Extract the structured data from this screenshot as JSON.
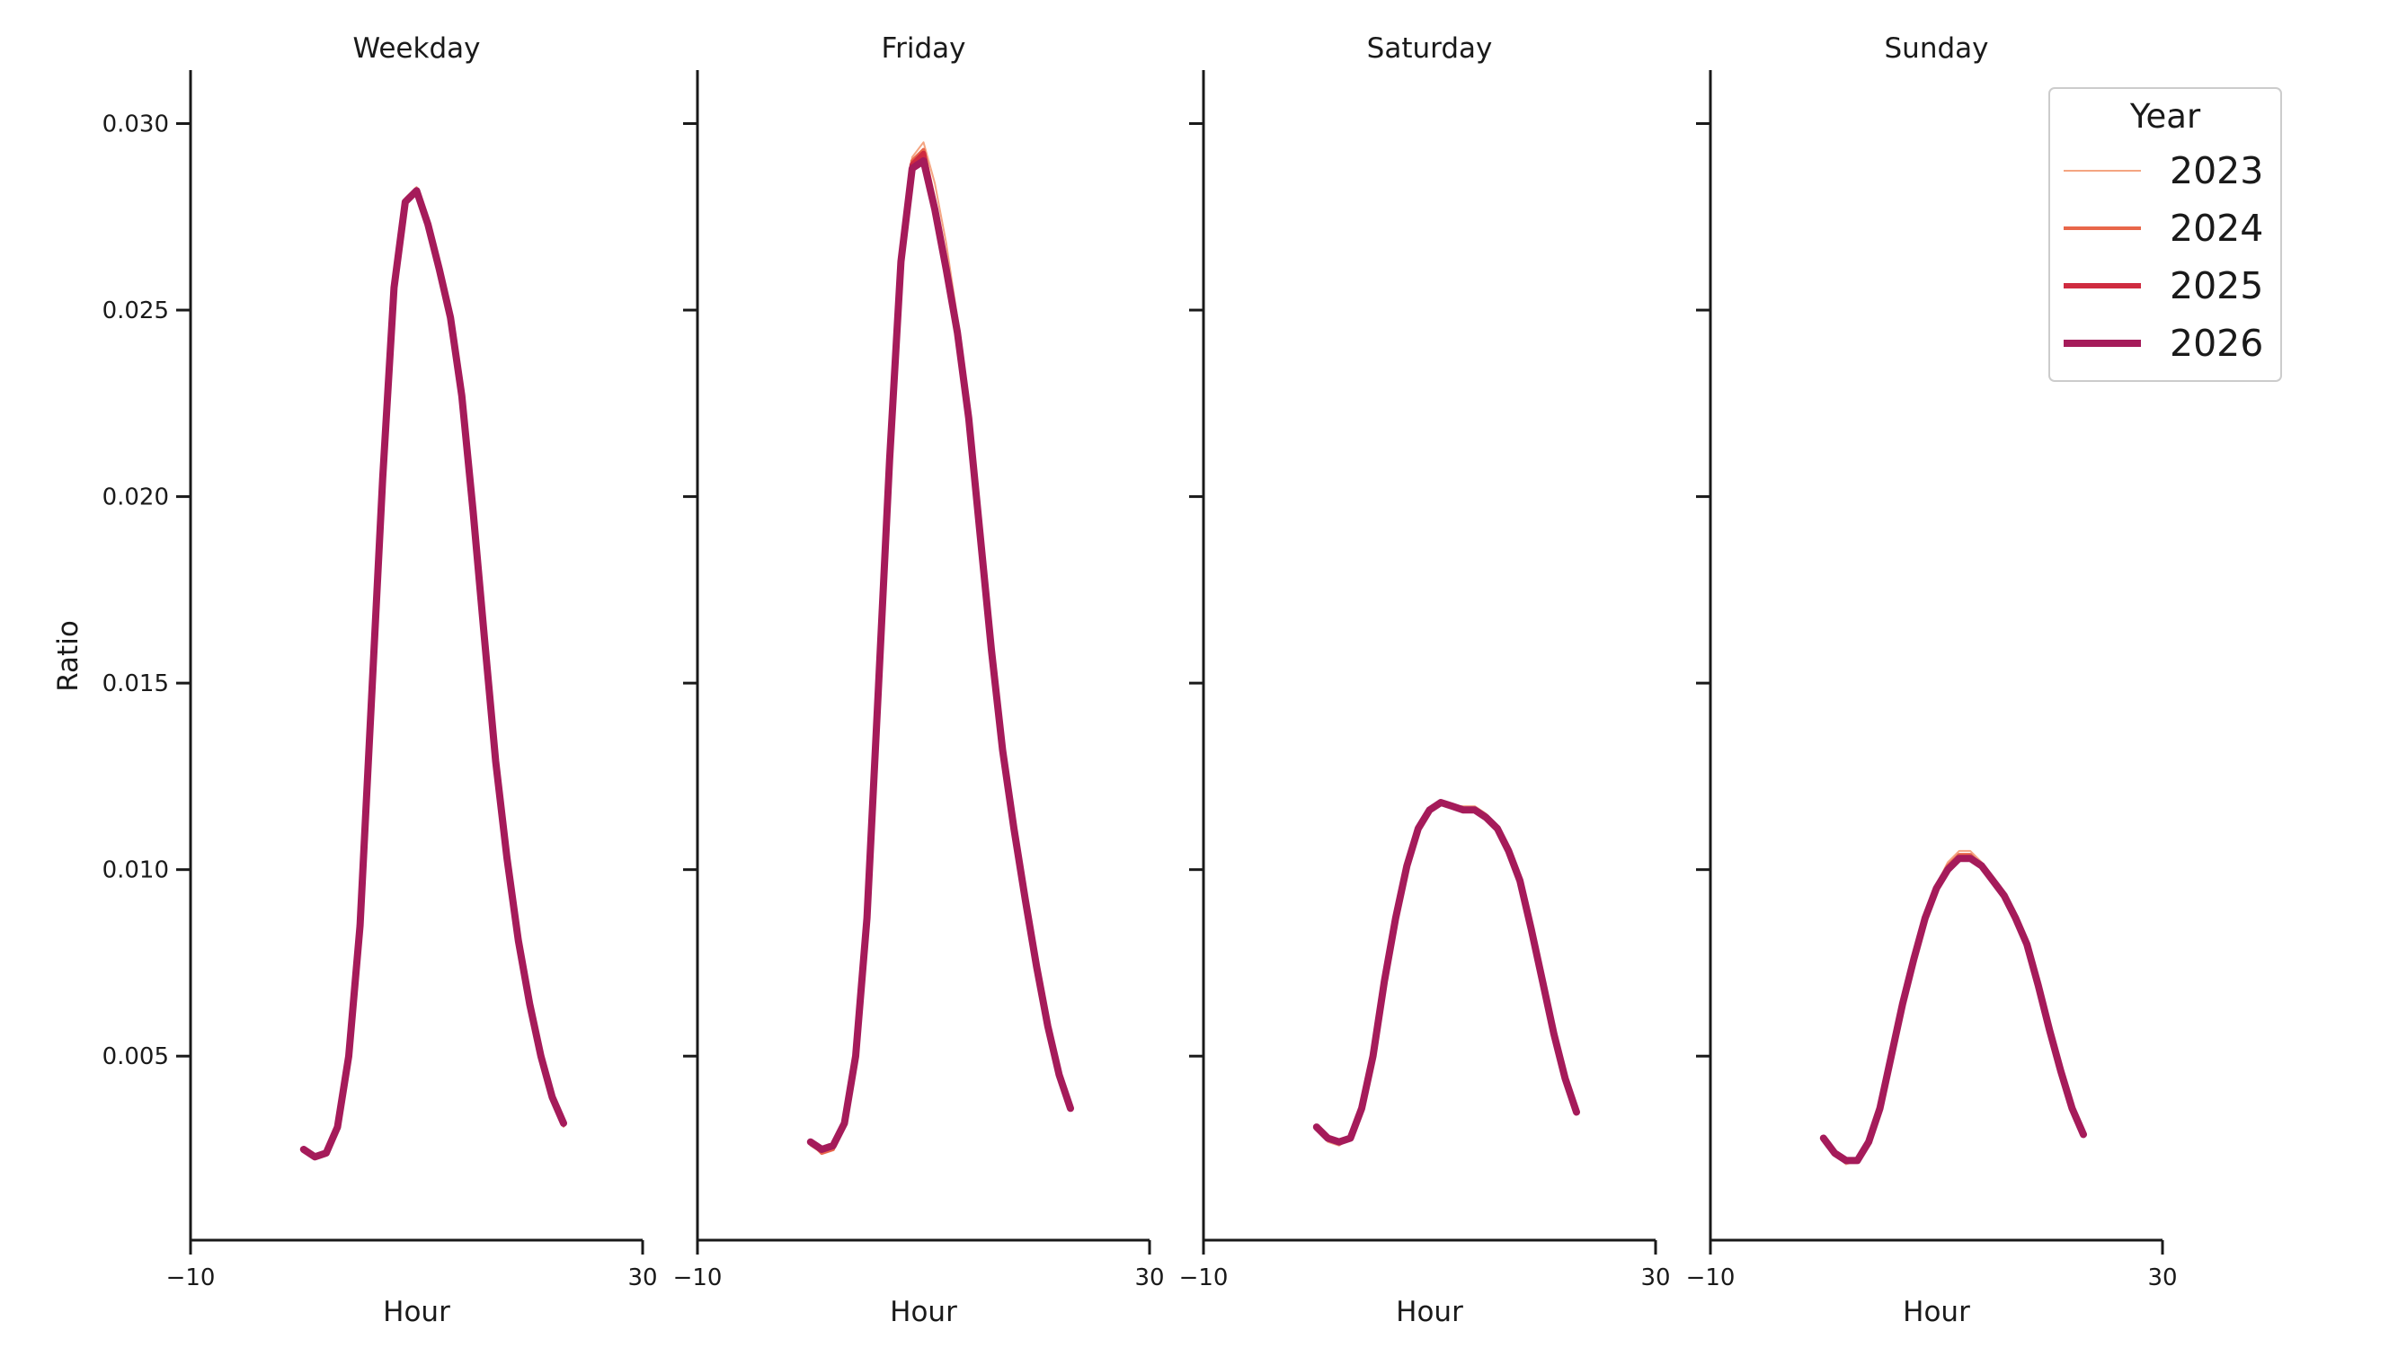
{
  "chart_data": {
    "type": "line",
    "ylabel": "Ratio",
    "xlabel": "Hour",
    "xlim": [
      -10,
      30
    ],
    "ylim": [
      0.0005,
      0.031
    ],
    "x_ticks": [
      -10,
      30
    ],
    "x_tick_labels": [
      "−10",
      "30"
    ],
    "y_ticks": [
      0.005,
      0.01,
      0.015,
      0.02,
      0.025,
      0.03
    ],
    "y_tick_labels": [
      "0.005",
      "0.010",
      "0.015",
      "0.020",
      "0.025",
      "0.030"
    ],
    "grid": false,
    "legend": {
      "title": "Year",
      "placement": "top-right",
      "entries": [
        {
          "name": "2023",
          "color": "#f4a582"
        },
        {
          "name": "2024",
          "color": "#e8674a"
        },
        {
          "name": "2025",
          "color": "#cf2b40"
        },
        {
          "name": "2026",
          "color": "#a51b5a"
        }
      ]
    },
    "x": [
      0,
      1,
      2,
      3,
      4,
      5,
      6,
      7,
      8,
      9,
      10,
      11,
      12,
      13,
      14,
      15,
      16,
      17,
      18,
      19,
      20,
      21,
      22,
      23
    ],
    "panels": [
      {
        "title": "Weekday",
        "series": [
          {
            "name": "2023",
            "values": [
              0.0025,
              0.0023,
              0.0024,
              0.0031,
              0.005,
              0.0085,
              0.0145,
              0.0205,
              0.0256,
              0.028,
              0.0283,
              0.0273,
              0.0261,
              0.0248,
              0.0227,
              0.0196,
              0.0162,
              0.0129,
              0.0103,
              0.0081,
              0.0064,
              0.005,
              0.0039,
              0.0031
            ]
          },
          {
            "name": "2024",
            "values": [
              0.0025,
              0.0023,
              0.0024,
              0.0031,
              0.005,
              0.0085,
              0.0145,
              0.0205,
              0.0256,
              0.0279,
              0.0282,
              0.0273,
              0.0261,
              0.0248,
              0.0227,
              0.0196,
              0.0162,
              0.0129,
              0.0103,
              0.0081,
              0.0064,
              0.005,
              0.0039,
              0.0032
            ]
          },
          {
            "name": "2025",
            "values": [
              0.0025,
              0.0023,
              0.0024,
              0.0031,
              0.005,
              0.0085,
              0.0145,
              0.0205,
              0.0256,
              0.0279,
              0.0282,
              0.0273,
              0.0261,
              0.0248,
              0.0227,
              0.0196,
              0.0162,
              0.0129,
              0.0103,
              0.0081,
              0.0064,
              0.005,
              0.0039,
              0.0032
            ]
          },
          {
            "name": "2026",
            "values": [
              0.0025,
              0.0023,
              0.0024,
              0.0031,
              0.005,
              0.0085,
              0.0145,
              0.0205,
              0.0256,
              0.0279,
              0.0282,
              0.0273,
              0.0261,
              0.0248,
              0.0227,
              0.0196,
              0.0162,
              0.0129,
              0.0103,
              0.0081,
              0.0064,
              0.005,
              0.0039,
              0.0032
            ]
          }
        ]
      },
      {
        "title": "Friday",
        "series": [
          {
            "name": "2023",
            "values": [
              0.0026,
              0.0024,
              0.0025,
              0.0032,
              0.005,
              0.0087,
              0.0148,
              0.021,
              0.0263,
              0.0291,
              0.0295,
              0.0284,
              0.0268,
              0.0248,
              0.0222,
              0.019,
              0.0159,
              0.0132,
              0.0111,
              0.0092,
              0.0074,
              0.0058,
              0.0045,
              0.0036
            ]
          },
          {
            "name": "2024",
            "values": [
              0.0027,
              0.0024,
              0.0025,
              0.0032,
              0.005,
              0.0087,
              0.0148,
              0.021,
              0.0263,
              0.029,
              0.0293,
              0.0279,
              0.0262,
              0.0244,
              0.0221,
              0.019,
              0.0159,
              0.0132,
              0.0111,
              0.0092,
              0.0074,
              0.0058,
              0.0045,
              0.0036
            ]
          },
          {
            "name": "2025",
            "values": [
              0.0027,
              0.0025,
              0.0026,
              0.0032,
              0.005,
              0.0087,
              0.0148,
              0.021,
              0.0263,
              0.0289,
              0.0292,
              0.0277,
              0.0261,
              0.0244,
              0.0221,
              0.019,
              0.0159,
              0.0132,
              0.0111,
              0.0092,
              0.0074,
              0.0058,
              0.0045,
              0.0036
            ]
          },
          {
            "name": "2026",
            "values": [
              0.0027,
              0.0025,
              0.0026,
              0.0032,
              0.005,
              0.0087,
              0.0148,
              0.021,
              0.0263,
              0.0288,
              0.029,
              0.0277,
              0.0261,
              0.0244,
              0.0221,
              0.019,
              0.0159,
              0.0132,
              0.0111,
              0.0092,
              0.0074,
              0.0058,
              0.0045,
              0.0036
            ]
          }
        ]
      },
      {
        "title": "Saturday",
        "series": [
          {
            "name": "2023",
            "values": [
              0.0031,
              0.0027,
              0.0026,
              0.0028,
              0.0036,
              0.005,
              0.007,
              0.0087,
              0.0101,
              0.0111,
              0.0116,
              0.0118,
              0.0117,
              0.0117,
              0.0117,
              0.0115,
              0.0111,
              0.0105,
              0.0097,
              0.0084,
              0.007,
              0.0055,
              0.0044,
              0.0035
            ]
          },
          {
            "name": "2024",
            "values": [
              0.0031,
              0.0028,
              0.0027,
              0.0028,
              0.0036,
              0.005,
              0.007,
              0.0087,
              0.0101,
              0.0111,
              0.0116,
              0.0118,
              0.0117,
              0.0116,
              0.0116,
              0.0114,
              0.0111,
              0.0105,
              0.0097,
              0.0084,
              0.007,
              0.0056,
              0.0044,
              0.0035
            ]
          },
          {
            "name": "2025",
            "values": [
              0.0031,
              0.0028,
              0.0027,
              0.0028,
              0.0036,
              0.005,
              0.007,
              0.0087,
              0.0101,
              0.0111,
              0.0116,
              0.0118,
              0.0117,
              0.0116,
              0.0116,
              0.0114,
              0.0111,
              0.0105,
              0.0097,
              0.0084,
              0.007,
              0.0056,
              0.0044,
              0.0035
            ]
          },
          {
            "name": "2026",
            "values": [
              0.0031,
              0.0028,
              0.0027,
              0.0028,
              0.0036,
              0.005,
              0.007,
              0.0087,
              0.0101,
              0.0111,
              0.0116,
              0.0118,
              0.0117,
              0.0116,
              0.0116,
              0.0114,
              0.0111,
              0.0105,
              0.0097,
              0.0084,
              0.007,
              0.0056,
              0.0044,
              0.0035
            ]
          }
        ]
      },
      {
        "title": "Sunday",
        "series": [
          {
            "name": "2023",
            "values": [
              0.0028,
              0.0024,
              0.0021,
              0.0022,
              0.0027,
              0.0036,
              0.005,
              0.0064,
              0.0076,
              0.0087,
              0.0096,
              0.0102,
              0.0105,
              0.0105,
              0.0102,
              0.0098,
              0.0094,
              0.0088,
              0.008,
              0.0069,
              0.0057,
              0.0046,
              0.0036,
              0.0029
            ]
          },
          {
            "name": "2024",
            "values": [
              0.0028,
              0.0024,
              0.0022,
              0.0022,
              0.0027,
              0.0036,
              0.005,
              0.0064,
              0.0076,
              0.0087,
              0.0095,
              0.0101,
              0.0104,
              0.0104,
              0.0101,
              0.0097,
              0.0093,
              0.0087,
              0.008,
              0.0069,
              0.0057,
              0.0046,
              0.0036,
              0.0029
            ]
          },
          {
            "name": "2025",
            "values": [
              0.0028,
              0.0024,
              0.0022,
              0.0022,
              0.0027,
              0.0036,
              0.005,
              0.0064,
              0.0076,
              0.0087,
              0.0095,
              0.01,
              0.0103,
              0.0103,
              0.0101,
              0.0097,
              0.0093,
              0.0087,
              0.008,
              0.0069,
              0.0057,
              0.0046,
              0.0036,
              0.0029
            ]
          },
          {
            "name": "2026",
            "values": [
              0.0028,
              0.0024,
              0.0022,
              0.0022,
              0.0027,
              0.0036,
              0.005,
              0.0064,
              0.0076,
              0.0087,
              0.0095,
              0.01,
              0.0103,
              0.0103,
              0.0101,
              0.0097,
              0.0093,
              0.0087,
              0.008,
              0.0069,
              0.0057,
              0.0046,
              0.0036,
              0.0029
            ]
          }
        ]
      }
    ]
  }
}
